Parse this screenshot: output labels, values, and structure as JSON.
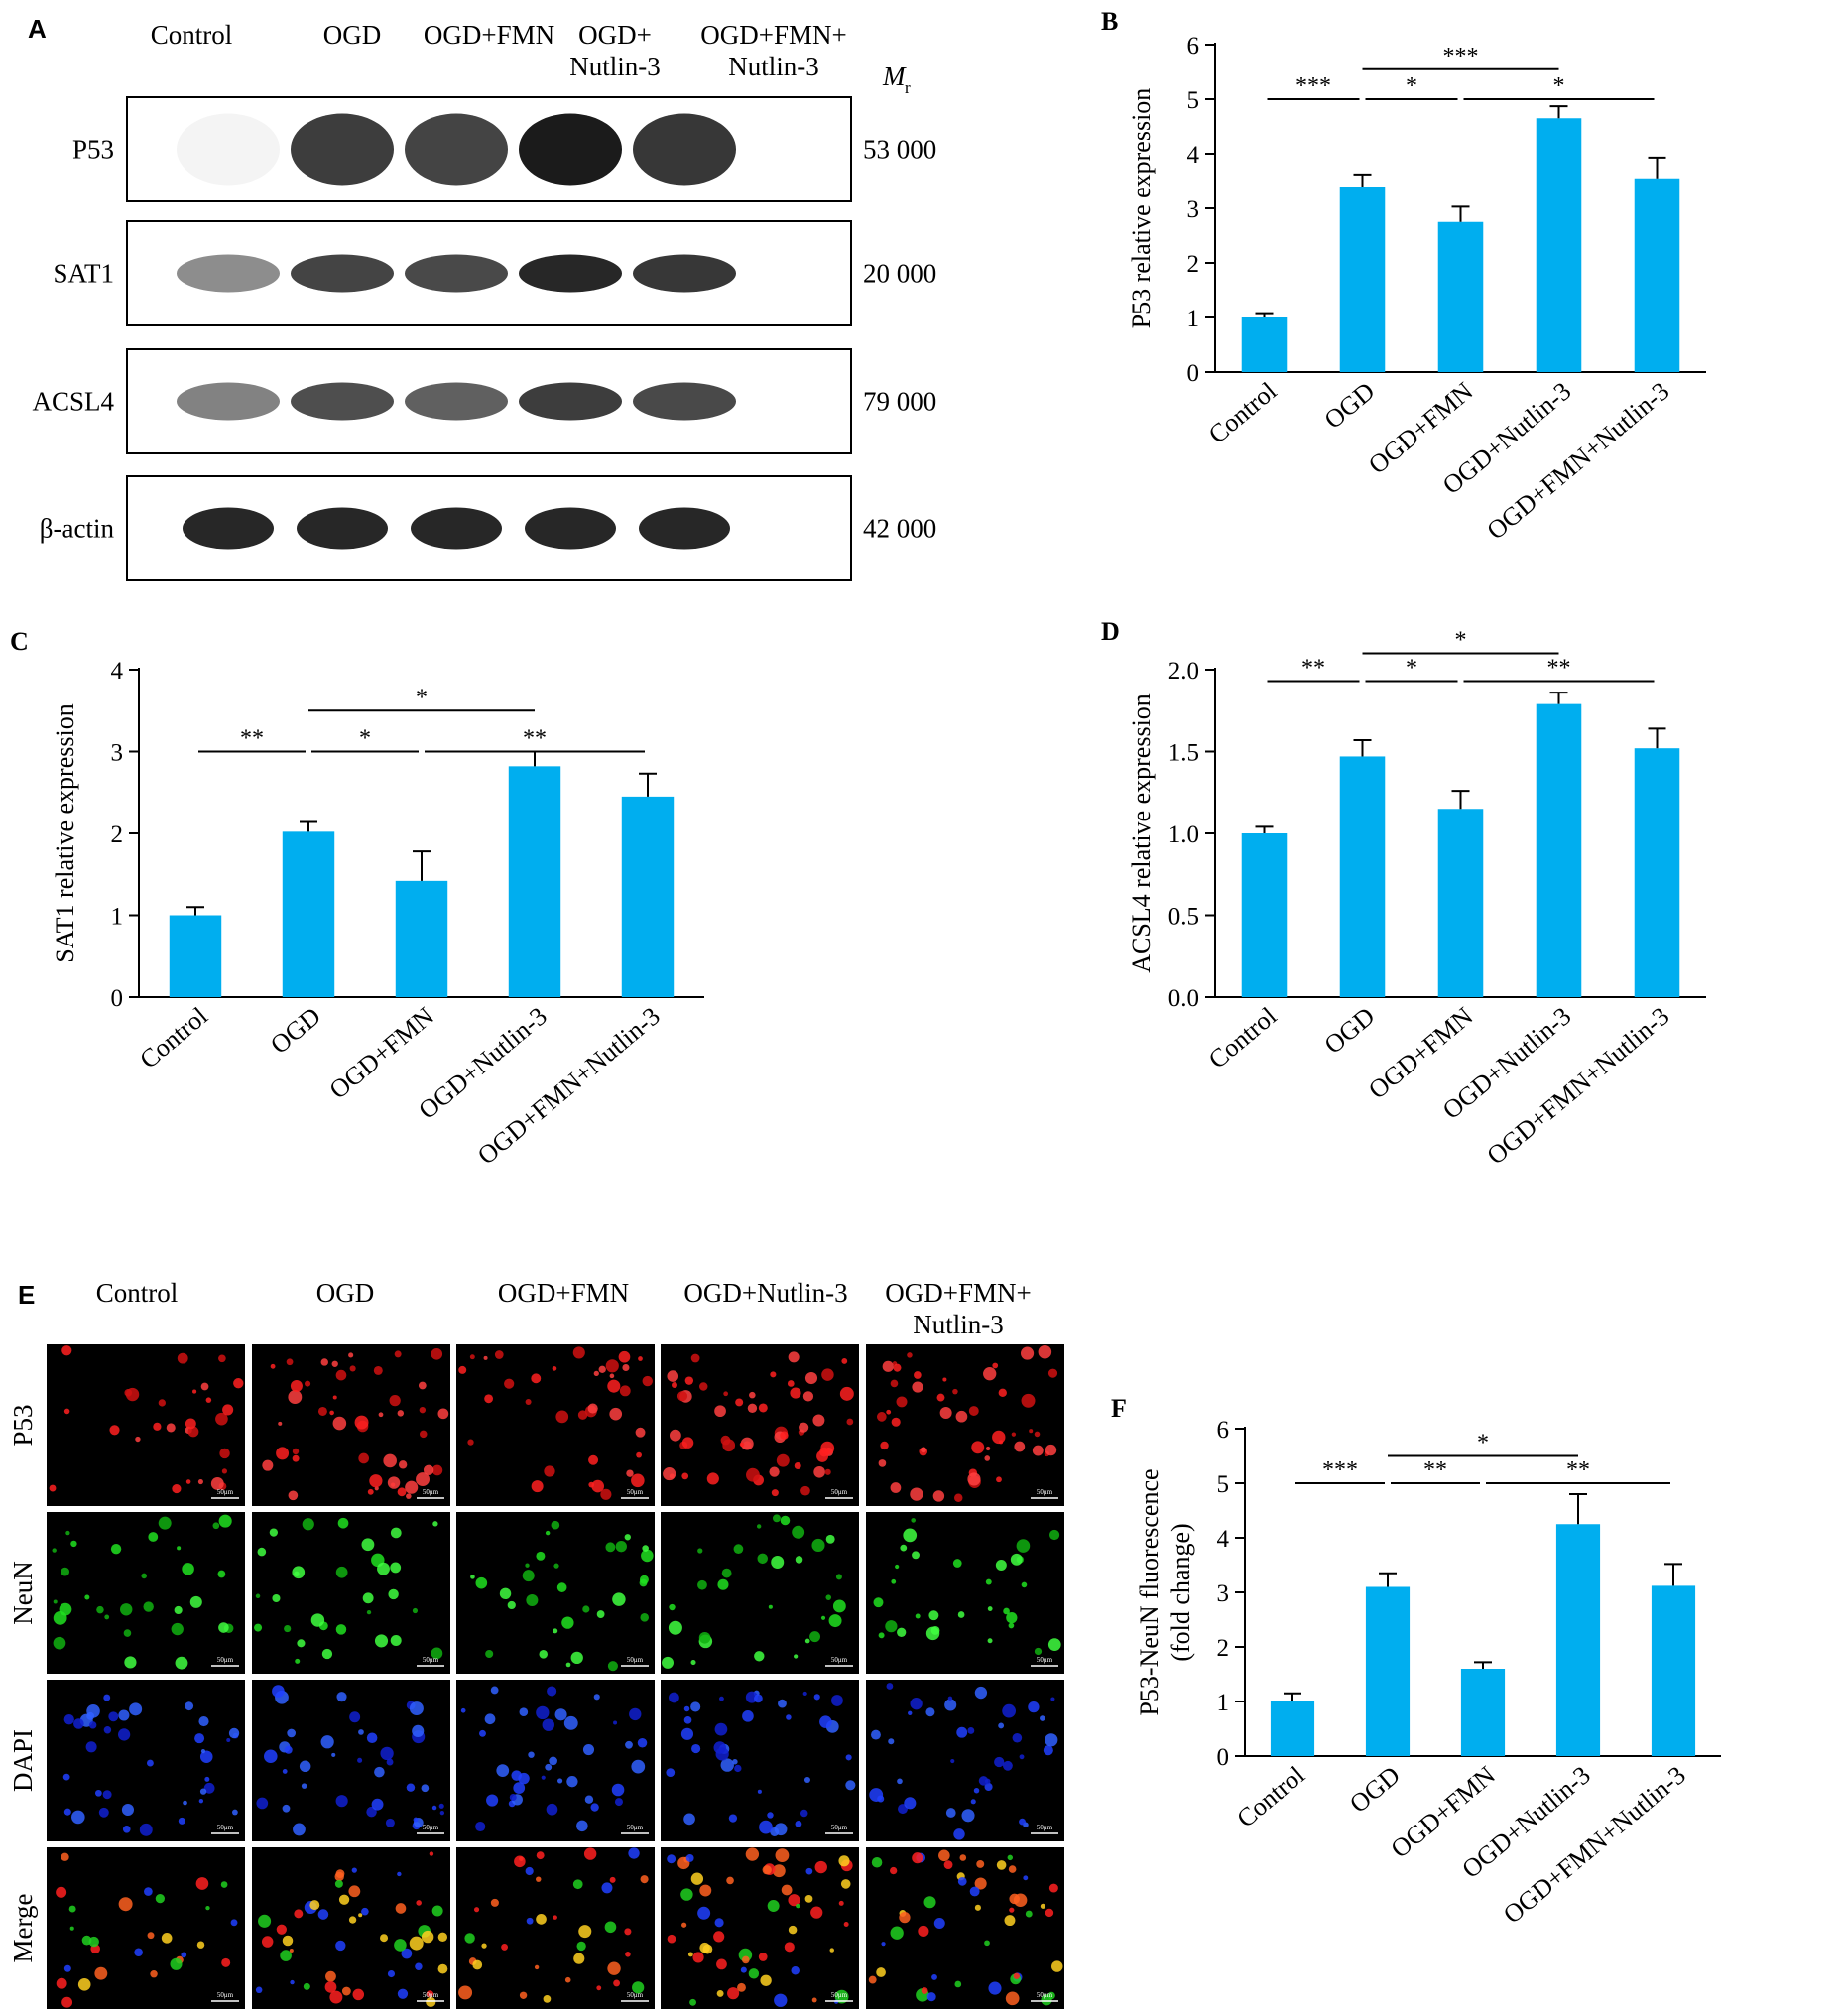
{
  "panelA": {
    "letter": "A",
    "lanes": [
      "Control",
      "OGD",
      "OGD+FMN",
      "OGD+\nNutlin-3",
      "OGD+FMN+\nNutlin-3"
    ],
    "mr_label": "M",
    "mr_sub": "r",
    "blots": [
      {
        "name": "P53",
        "mr": "53 000",
        "intensity": [
          0.05,
          0.85,
          0.82,
          1.0,
          0.88
        ]
      },
      {
        "name": "SAT1",
        "mr": "20 000",
        "intensity": [
          0.5,
          0.82,
          0.8,
          0.95,
          0.88
        ]
      },
      {
        "name": "ACSL4",
        "mr": "79 000",
        "intensity": [
          0.55,
          0.78,
          0.7,
          0.85,
          0.8
        ]
      },
      {
        "name": "β-actin",
        "mr": "42 000",
        "intensity": [
          0.95,
          0.95,
          0.95,
          0.95,
          0.95
        ]
      }
    ]
  },
  "panelE": {
    "letter": "E",
    "columns": [
      "Control",
      "OGD",
      "OGD+FMN",
      "OGD+Nutlin-3",
      "OGD+FMN+\nNutlin-3"
    ],
    "rows": [
      "P53",
      "NeuN",
      "DAPI",
      "Merge"
    ],
    "scale_bar": "50μm",
    "density": [
      0.35,
      0.8,
      0.55,
      1.0,
      0.85
    ]
  },
  "chart_data": [
    {
      "panel": "B",
      "type": "bar",
      "ylabel": "P53 relative expression",
      "categories": [
        "Control",
        "OGD",
        "OGD+FMN",
        "OGD+Nutlin-3",
        "OGD+FMN+Nutlin-3"
      ],
      "values": [
        1.0,
        3.4,
        2.75,
        4.65,
        3.55
      ],
      "errors": [
        0.08,
        0.22,
        0.28,
        0.22,
        0.38
      ],
      "ylim": [
        0,
        6
      ],
      "yticks": [
        "0",
        "1",
        "2",
        "3",
        "4",
        "5",
        "6"
      ],
      "yticks_val": [
        0,
        1,
        2,
        3,
        4,
        5,
        6
      ],
      "bar_color": "#00aeef",
      "significance": [
        {
          "from": 0,
          "to": 1,
          "label": "***",
          "level": 1
        },
        {
          "from": 1,
          "to": 2,
          "label": "*",
          "level": 1
        },
        {
          "from": 2,
          "to": 4,
          "label": "*",
          "level": 1
        },
        {
          "from": 1,
          "to": 3,
          "label": "***",
          "level": 2
        }
      ]
    },
    {
      "panel": "C",
      "type": "bar",
      "ylabel": "SAT1 relative expression",
      "categories": [
        "Control",
        "OGD",
        "OGD+FMN",
        "OGD+Nutlin-3",
        "OGD+FMN+Nutlin-3"
      ],
      "values": [
        1.0,
        2.02,
        1.42,
        2.82,
        2.45
      ],
      "errors": [
        0.1,
        0.12,
        0.36,
        0.18,
        0.28
      ],
      "ylim": [
        0,
        4
      ],
      "yticks": [
        "0",
        "1",
        "2",
        "3",
        "4"
      ],
      "yticks_val": [
        0,
        1,
        2,
        3,
        4
      ],
      "bar_color": "#00aeef",
      "significance": [
        {
          "from": 0,
          "to": 1,
          "label": "**",
          "level": 1
        },
        {
          "from": 1,
          "to": 2,
          "label": "*",
          "level": 1
        },
        {
          "from": 2,
          "to": 4,
          "label": "**",
          "level": 1
        },
        {
          "from": 1,
          "to": 3,
          "label": "*",
          "level": 2
        }
      ]
    },
    {
      "panel": "D",
      "type": "bar",
      "ylabel": "ACSL4 relative expression",
      "categories": [
        "Control",
        "OGD",
        "OGD+FMN",
        "OGD+Nutlin-3",
        "OGD+FMN+Nutlin-3"
      ],
      "values": [
        1.0,
        1.47,
        1.15,
        1.79,
        1.52
      ],
      "errors": [
        0.04,
        0.1,
        0.11,
        0.07,
        0.12
      ],
      "ylim": [
        0,
        2.0
      ],
      "yticks": [
        "0.0",
        "0.5",
        "1.0",
        "1.5",
        "2.0"
      ],
      "yticks_val": [
        0,
        0.5,
        1.0,
        1.5,
        2.0
      ],
      "bar_color": "#00aeef",
      "significance": [
        {
          "from": 0,
          "to": 1,
          "label": "**",
          "level": 1
        },
        {
          "from": 1,
          "to": 2,
          "label": "*",
          "level": 1
        },
        {
          "from": 2,
          "to": 4,
          "label": "**",
          "level": 1
        },
        {
          "from": 1,
          "to": 3,
          "label": "*",
          "level": 2
        }
      ]
    },
    {
      "panel": "F",
      "type": "bar",
      "ylabel": "P53-NeuN fluorescence",
      "ylabel2": "(fold change)",
      "categories": [
        "Control",
        "OGD",
        "OGD+FMN",
        "OGD+Nutlin-3",
        "OGD+FMN+Nutlin-3"
      ],
      "values": [
        1.0,
        3.1,
        1.6,
        4.25,
        3.12
      ],
      "errors": [
        0.15,
        0.25,
        0.12,
        0.55,
        0.4
      ],
      "ylim": [
        0,
        6
      ],
      "yticks": [
        "0",
        "1",
        "2",
        "3",
        "4",
        "5",
        "6"
      ],
      "yticks_val": [
        0,
        1,
        2,
        3,
        4,
        5,
        6
      ],
      "bar_color": "#00aeef",
      "significance": [
        {
          "from": 0,
          "to": 1,
          "label": "***",
          "level": 1
        },
        {
          "from": 1,
          "to": 2,
          "label": "**",
          "level": 1
        },
        {
          "from": 2,
          "to": 4,
          "label": "**",
          "level": 1
        },
        {
          "from": 1,
          "to": 3,
          "label": "*",
          "level": 2
        }
      ]
    }
  ]
}
